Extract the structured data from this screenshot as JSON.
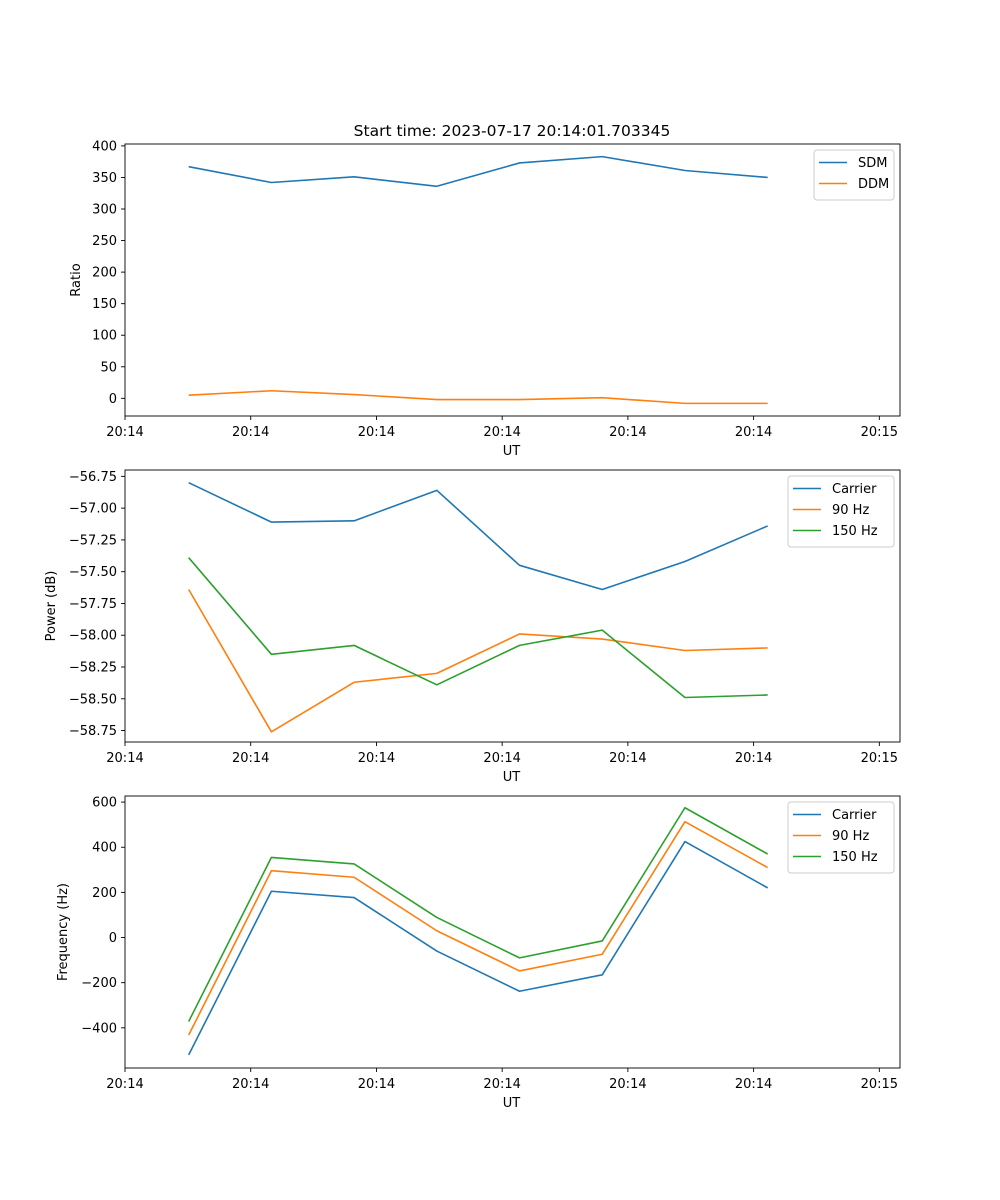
{
  "figure_title": "Start time: 2023-07-17 20:14:01.703345",
  "colors": {
    "blue": "#1f77b4",
    "orange": "#ff7f0e",
    "green": "#2ca02c",
    "axis": "#000000",
    "legend_edge": "#cccccc"
  },
  "chart_data": [
    {
      "type": "line",
      "title": "Start time: 2023-07-17 20:14:01.703345",
      "xlabel": "UT",
      "ylabel": "Ratio",
      "xlim": [
        -0.77,
        8.6
      ],
      "ylim": [
        -28,
        403
      ],
      "x": [
        0,
        1,
        2,
        3,
        4,
        5,
        6,
        7
      ],
      "xtick_positions": [
        -0.77,
        0.75,
        2.27,
        3.79,
        5.31,
        6.83,
        8.35
      ],
      "xtick_labels": [
        "20:14",
        "20:14",
        "20:14",
        "20:14",
        "20:14",
        "20:14",
        "20:15"
      ],
      "yticks": [
        0,
        50,
        100,
        150,
        200,
        250,
        300,
        350,
        400
      ],
      "ytick_labels": [
        "0",
        "50",
        "100",
        "150",
        "200",
        "250",
        "300",
        "350",
        "400"
      ],
      "legend": "top-right",
      "series": [
        {
          "name": "SDM",
          "color": "#1f77b4",
          "values": [
            367,
            342,
            351,
            336,
            373,
            383,
            361,
            350
          ]
        },
        {
          "name": "DDM",
          "color": "#ff7f0e",
          "values": [
            5,
            12,
            6,
            -2,
            -2,
            1,
            -8,
            -8
          ]
        }
      ]
    },
    {
      "type": "line",
      "title": "",
      "xlabel": "UT",
      "ylabel": "Power (dB)",
      "xlim": [
        -0.77,
        8.6
      ],
      "ylim": [
        -58.84,
        -56.7
      ],
      "x": [
        0,
        1,
        2,
        3,
        4,
        5,
        6,
        7
      ],
      "xtick_positions": [
        -0.77,
        0.75,
        2.27,
        3.79,
        5.31,
        6.83,
        8.35
      ],
      "xtick_labels": [
        "20:14",
        "20:14",
        "20:14",
        "20:14",
        "20:14",
        "20:14",
        "20:15"
      ],
      "yticks": [
        -58.75,
        -58.5,
        -58.25,
        -58.0,
        -57.75,
        -57.5,
        -57.25,
        -57.0,
        -56.75
      ],
      "ytick_labels": [
        "−58.75",
        "−58.50",
        "−58.25",
        "−58.00",
        "−57.75",
        "−57.50",
        "−57.25",
        "−57.00",
        "−56.75"
      ],
      "legend": "top-right",
      "series": [
        {
          "name": "Carrier",
          "color": "#1f77b4",
          "values": [
            -56.8,
            -57.11,
            -57.1,
            -56.86,
            -57.45,
            -57.64,
            -57.42,
            -57.14
          ]
        },
        {
          "name": "90 Hz",
          "color": "#ff7f0e",
          "values": [
            -57.64,
            -58.76,
            -58.37,
            -58.3,
            -57.99,
            -58.03,
            -58.12,
            -58.1
          ]
        },
        {
          "name": "150 Hz",
          "color": "#2ca02c",
          "values": [
            -57.39,
            -58.15,
            -58.08,
            -58.39,
            -58.08,
            -57.96,
            -58.49,
            -58.47
          ]
        }
      ]
    },
    {
      "type": "line",
      "title": "",
      "xlabel": "UT",
      "ylabel": "Frequency (Hz)",
      "xlim": [
        -0.77,
        8.6
      ],
      "ylim": [
        -578,
        627
      ],
      "x": [
        0,
        1,
        2,
        3,
        4,
        5,
        6,
        7
      ],
      "xtick_positions": [
        -0.77,
        0.75,
        2.27,
        3.79,
        5.31,
        6.83,
        8.35
      ],
      "xtick_labels": [
        "20:14",
        "20:14",
        "20:14",
        "20:14",
        "20:14",
        "20:14",
        "20:15"
      ],
      "yticks": [
        -400,
        -200,
        0,
        200,
        400,
        600
      ],
      "ytick_labels": [
        "−400",
        "−200",
        "0",
        "200",
        "400",
        "600"
      ],
      "legend": "top-right",
      "series": [
        {
          "name": "Carrier",
          "color": "#1f77b4",
          "values": [
            -520,
            205,
            177,
            -60,
            -238,
            -165,
            425,
            220
          ]
        },
        {
          "name": "90 Hz",
          "color": "#ff7f0e",
          "values": [
            -432,
            296,
            267,
            30,
            -148,
            -74,
            513,
            310
          ]
        },
        {
          "name": "150 Hz",
          "color": "#2ca02c",
          "values": [
            -372,
            355,
            326,
            89,
            -90,
            -15,
            575,
            370
          ]
        }
      ]
    }
  ]
}
